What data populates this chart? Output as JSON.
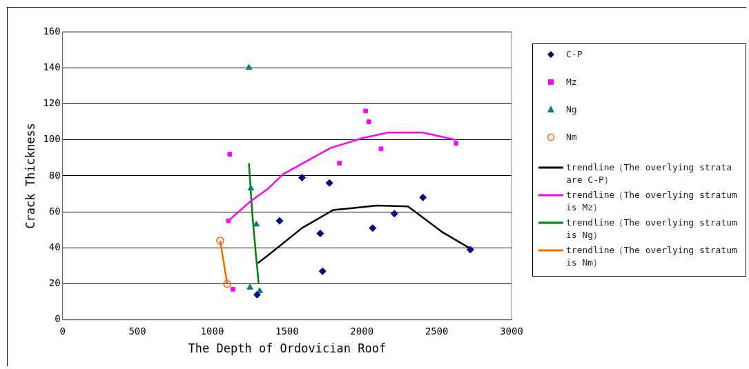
{
  "chart_data": {
    "type": "scatter",
    "xlabel": "The Depth of Ordovician Roof",
    "ylabel": "Crack Thickness",
    "xlim": [
      0,
      3000
    ],
    "xticks": [
      0,
      500,
      1000,
      1500,
      2000,
      2500,
      3000
    ],
    "ylim": [
      0,
      160
    ],
    "yticks": [
      0,
      20,
      40,
      60,
      80,
      100,
      120,
      140,
      160
    ],
    "grid": "y",
    "legend": "right",
    "series": [
      {
        "name": "C-P",
        "type": "scatter",
        "marker": "diamond",
        "color": "#000080",
        "x": [
          1300,
          1450,
          1600,
          1722,
          1737,
          1783,
          2072,
          2217,
          2408,
          2725
        ],
        "values": [
          14,
          55,
          79,
          48,
          27,
          76,
          51,
          59,
          68,
          39
        ]
      },
      {
        "name": "Mz",
        "type": "scatter",
        "marker": "square",
        "color": "#ff00ff",
        "x": [
          1108,
          1117,
          1138,
          1850,
          2025,
          2047,
          2128,
          2630
        ],
        "values": [
          55,
          92,
          17,
          87,
          116,
          110,
          95,
          98
        ]
      },
      {
        "name": "Ng",
        "type": "scatter",
        "marker": "triangle",
        "color": "#008080",
        "x": [
          1245,
          1252,
          1258,
          1295,
          1317
        ],
        "values": [
          140,
          18,
          73,
          53,
          16
        ]
      },
      {
        "name": "Nm",
        "type": "scatter",
        "marker": "circle",
        "color": "#ff6600",
        "x": [
          1053,
          1100
        ],
        "values": [
          44,
          20
        ]
      },
      {
        "name": "trendline（The overlying strata are C-P）",
        "type": "line",
        "marker": "none",
        "color": "#000000",
        "x": [
          1305,
          1375,
          1450,
          1600,
          1808,
          2100,
          2308,
          2542,
          2717
        ],
        "values": [
          31.5,
          36,
          41,
          51,
          61,
          63.5,
          63,
          48.5,
          40
        ]
      },
      {
        "name": "trendline（The overlying stratum is Mz）",
        "type": "line",
        "marker": "none",
        "color": "#ff00ff",
        "x": [
          1108,
          1258,
          1375,
          1475,
          1542,
          1792,
          2008,
          2175,
          2408,
          2625
        ],
        "values": [
          55,
          66,
          73,
          81,
          84,
          95.5,
          101,
          104,
          104,
          100
        ]
      },
      {
        "name": "trendline（The overlying stratum is Ng）",
        "type": "line",
        "marker": "none",
        "color": "#008000",
        "x": [
          1245,
          1267,
          1292,
          1310
        ],
        "values": [
          87,
          59.5,
          36,
          20.5
        ]
      },
      {
        "name": "trendline（The overlying stratum is Nm）",
        "type": "line",
        "marker": "none",
        "color": "#ff6600",
        "x": [
          1053,
          1100
        ],
        "values": [
          44,
          20
        ]
      }
    ]
  }
}
